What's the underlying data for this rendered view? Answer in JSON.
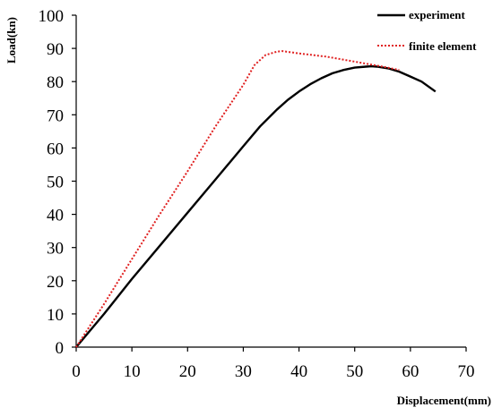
{
  "chart_data": {
    "type": "line",
    "xlabel": "Displacement(mm)",
    "ylabel": "Load(kn)",
    "xlim": [
      0,
      70
    ],
    "ylim": [
      0,
      100
    ],
    "x_ticks": [
      0,
      10,
      20,
      30,
      40,
      50,
      60,
      70
    ],
    "y_ticks": [
      0,
      10,
      20,
      30,
      40,
      50,
      60,
      70,
      80,
      90,
      100
    ],
    "grid": false,
    "legend_position": "top-right",
    "series": [
      {
        "name": "experiment",
        "color": "#000000",
        "line_style": "solid",
        "x": [
          0,
          5,
          10,
          15,
          20,
          25,
          30,
          33,
          36,
          38,
          40,
          42,
          44,
          46,
          48,
          50,
          52,
          53,
          54,
          56,
          58,
          60,
          62,
          64.5
        ],
        "y": [
          0,
          10,
          20.5,
          30.5,
          40.5,
          50.5,
          60.5,
          66.5,
          71.5,
          74.5,
          77,
          79.2,
          81,
          82.5,
          83.5,
          84.2,
          84.5,
          84.6,
          84.5,
          84,
          83,
          81.5,
          80,
          77
        ]
      },
      {
        "name": "finite element",
        "color": "#e02020",
        "line_style": "dotted",
        "x": [
          0,
          5,
          10,
          15,
          20,
          25,
          30,
          32,
          34,
          36,
          37,
          40,
          45,
          50,
          55,
          58
        ],
        "y": [
          0,
          13,
          26.5,
          40,
          53,
          66.5,
          79,
          85,
          88,
          89,
          89.2,
          88.5,
          87.5,
          86,
          84.5,
          83.5
        ]
      }
    ]
  }
}
